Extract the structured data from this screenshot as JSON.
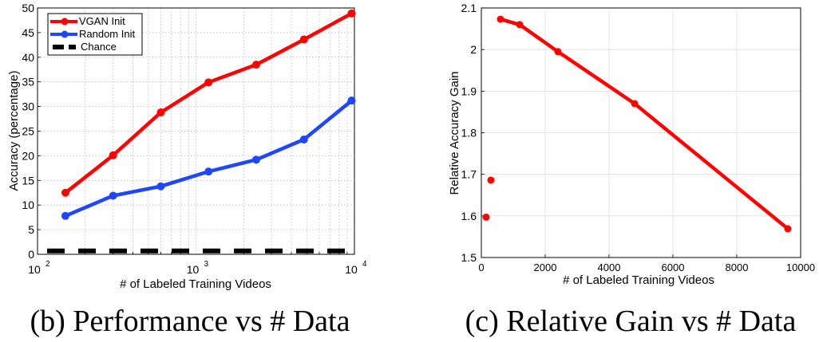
{
  "chart_data": [
    {
      "type": "line",
      "xscale": "log",
      "xlim": [
        100,
        10000
      ],
      "ylim": [
        0,
        50
      ],
      "grid": true,
      "legend_position": "top-left",
      "xlabel": "# of Labeled Training Videos",
      "ylabel": "Accuracy (percentage)",
      "caption": "(b) Performance vs # Data",
      "xticks": [
        {
          "value": 100,
          "base": "10",
          "exp": "2"
        },
        {
          "value": 1000,
          "base": "10",
          "exp": "3"
        },
        {
          "value": 10000,
          "base": "10",
          "exp": "4"
        }
      ],
      "yticks": [
        "0",
        "5",
        "10",
        "15",
        "20",
        "25",
        "30",
        "35",
        "40",
        "45",
        "50"
      ],
      "series": [
        {
          "name": "VGAN Init",
          "color": "#ff0000",
          "style": "solid",
          "x": [
            150,
            300,
            600,
            1200,
            2400,
            4800,
            9600
          ],
          "y": [
            12.5,
            20.1,
            28.8,
            34.9,
            38.5,
            43.6,
            48.9
          ]
        },
        {
          "name": "Random Init",
          "color": "#2146ff",
          "style": "solid",
          "x": [
            150,
            300,
            600,
            1200,
            2400,
            4800,
            9600
          ],
          "y": [
            7.8,
            11.9,
            13.8,
            16.8,
            19.2,
            23.3,
            31.2
          ]
        },
        {
          "name": "Chance",
          "color": "#000000",
          "style": "dashed",
          "x": [
            100,
            10000
          ],
          "y": [
            0.7,
            0.7
          ]
        }
      ]
    },
    {
      "type": "line",
      "xlim": [
        0,
        10000
      ],
      "ylim": [
        1.5,
        2.1
      ],
      "grid": true,
      "xlabel": "# of Labeled Training Videos",
      "ylabel": "Relative Accuracy Gain",
      "caption": "(c) Relative Gain vs # Data",
      "xticks": [
        "0",
        "2000",
        "4000",
        "6000",
        "8000",
        "10000"
      ],
      "yticks": [
        "1.5",
        "1.6",
        "1.7",
        "1.8",
        "1.9",
        "2",
        "2.1"
      ],
      "series": [
        {
          "color": "#ff0000",
          "x": [
            150,
            300,
            600,
            1200,
            2400,
            4800,
            9600
          ],
          "y": [
            1.597,
            1.686,
            2.073,
            2.06,
            1.995,
            1.87,
            1.569
          ],
          "line_from_index": 2
        }
      ]
    }
  ]
}
